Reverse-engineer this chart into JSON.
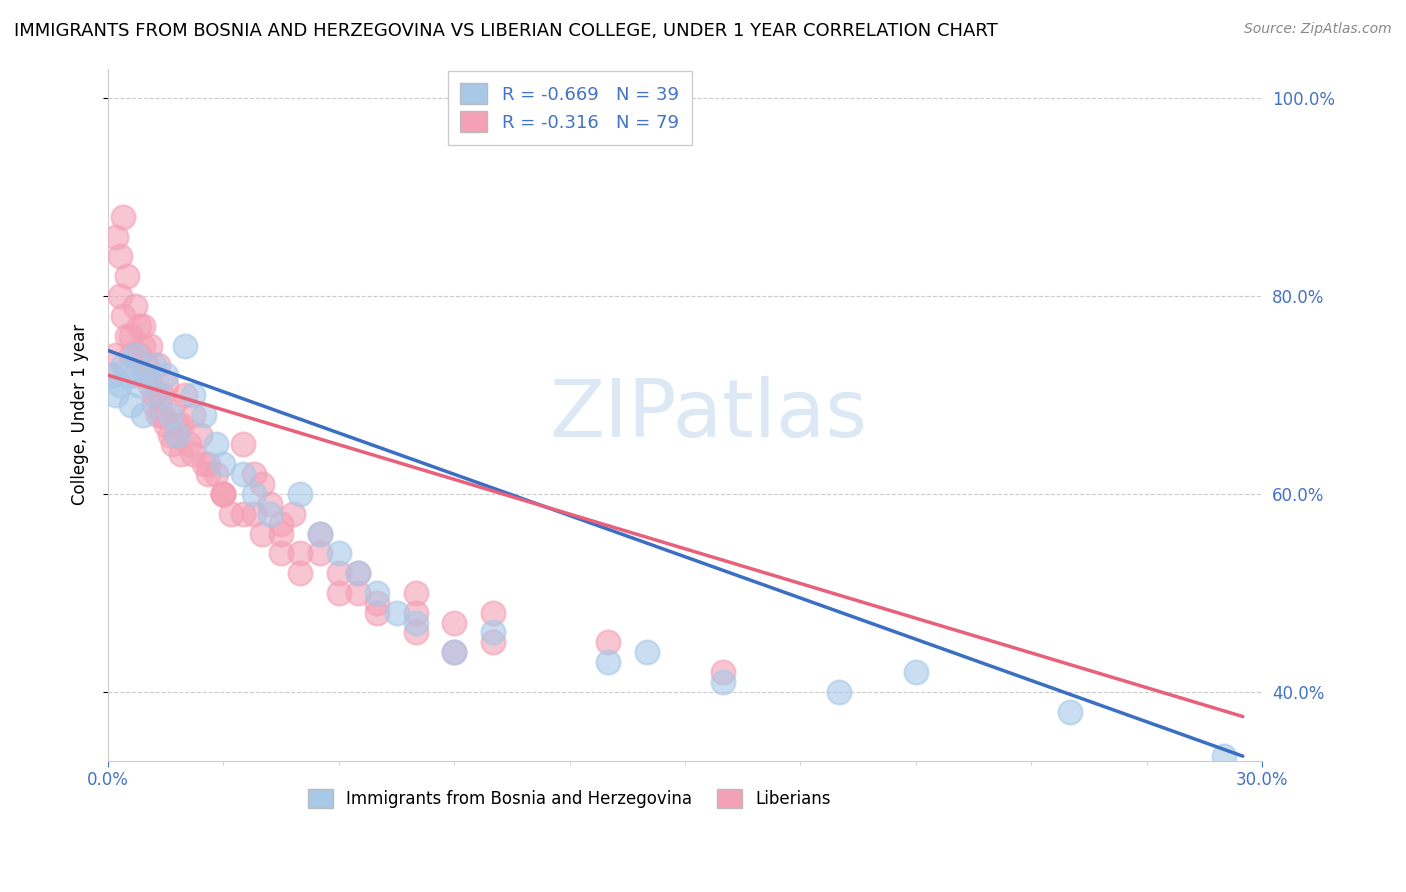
{
  "title": "IMMIGRANTS FROM BOSNIA AND HERZEGOVINA VS LIBERIAN COLLEGE, UNDER 1 YEAR CORRELATION CHART",
  "source": "Source: ZipAtlas.com",
  "ylabel": "College, Under 1 year",
  "legend_label_blue": "Immigrants from Bosnia and Herzegovina",
  "legend_label_pink": "Liberians",
  "xlim": [
    0.0,
    0.3
  ],
  "ylim": [
    0.33,
    1.03
  ],
  "yticks_right": [
    0.4,
    0.6,
    0.8,
    1.0
  ],
  "blue_color": "#a8c8e8",
  "pink_color": "#f4a0b5",
  "line_blue_color": "#3a6fc4",
  "line_pink_color": "#e8607a",
  "watermark_color": "#dde8f5",
  "blue_R": -0.669,
  "blue_N": 39,
  "pink_R": -0.316,
  "pink_N": 79,
  "blue_scatter_x": [
    0.001,
    0.002,
    0.003,
    0.004,
    0.005,
    0.006,
    0.007,
    0.008,
    0.009,
    0.01,
    0.012,
    0.013,
    0.015,
    0.016,
    0.018,
    0.02,
    0.022,
    0.025,
    0.028,
    0.03,
    0.035,
    0.038,
    0.042,
    0.05,
    0.055,
    0.06,
    0.065,
    0.07,
    0.075,
    0.08,
    0.09,
    0.1,
    0.13,
    0.14,
    0.16,
    0.19,
    0.21,
    0.25,
    0.29
  ],
  "blue_scatter_y": [
    0.72,
    0.7,
    0.71,
    0.73,
    0.72,
    0.69,
    0.74,
    0.71,
    0.68,
    0.72,
    0.73,
    0.7,
    0.72,
    0.68,
    0.66,
    0.75,
    0.7,
    0.68,
    0.65,
    0.63,
    0.62,
    0.6,
    0.58,
    0.6,
    0.56,
    0.54,
    0.52,
    0.5,
    0.48,
    0.47,
    0.44,
    0.46,
    0.43,
    0.44,
    0.41,
    0.4,
    0.42,
    0.38,
    0.335
  ],
  "pink_scatter_x": [
    0.001,
    0.002,
    0.003,
    0.004,
    0.005,
    0.006,
    0.007,
    0.008,
    0.009,
    0.01,
    0.011,
    0.012,
    0.013,
    0.014,
    0.015,
    0.016,
    0.017,
    0.018,
    0.019,
    0.02,
    0.022,
    0.024,
    0.026,
    0.028,
    0.03,
    0.032,
    0.035,
    0.038,
    0.04,
    0.042,
    0.045,
    0.048,
    0.05,
    0.055,
    0.06,
    0.065,
    0.07,
    0.08,
    0.09,
    0.1,
    0.003,
    0.005,
    0.007,
    0.009,
    0.011,
    0.013,
    0.015,
    0.017,
    0.019,
    0.021,
    0.025,
    0.03,
    0.035,
    0.04,
    0.045,
    0.05,
    0.06,
    0.07,
    0.08,
    0.09,
    0.002,
    0.004,
    0.006,
    0.008,
    0.01,
    0.012,
    0.014,
    0.018,
    0.022,
    0.026,
    0.03,
    0.038,
    0.045,
    0.055,
    0.065,
    0.08,
    0.1,
    0.13,
    0.16
  ],
  "pink_scatter_y": [
    0.72,
    0.74,
    0.8,
    0.78,
    0.76,
    0.74,
    0.72,
    0.77,
    0.75,
    0.73,
    0.71,
    0.69,
    0.68,
    0.7,
    0.67,
    0.66,
    0.65,
    0.67,
    0.64,
    0.7,
    0.68,
    0.66,
    0.63,
    0.62,
    0.6,
    0.58,
    0.65,
    0.62,
    0.61,
    0.59,
    0.57,
    0.58,
    0.54,
    0.56,
    0.52,
    0.5,
    0.49,
    0.48,
    0.47,
    0.45,
    0.84,
    0.82,
    0.79,
    0.77,
    0.75,
    0.73,
    0.71,
    0.69,
    0.67,
    0.65,
    0.63,
    0.6,
    0.58,
    0.56,
    0.54,
    0.52,
    0.5,
    0.48,
    0.46,
    0.44,
    0.86,
    0.88,
    0.76,
    0.74,
    0.72,
    0.7,
    0.68,
    0.66,
    0.64,
    0.62,
    0.6,
    0.58,
    0.56,
    0.54,
    0.52,
    0.5,
    0.48,
    0.45,
    0.42
  ],
  "blue_line_x0": 0.0,
  "blue_line_x1": 0.295,
  "blue_line_y0": 0.745,
  "blue_line_y1": 0.335,
  "pink_line_x0": 0.0,
  "pink_line_x1": 0.295,
  "pink_line_y0": 0.72,
  "pink_line_y1": 0.375
}
